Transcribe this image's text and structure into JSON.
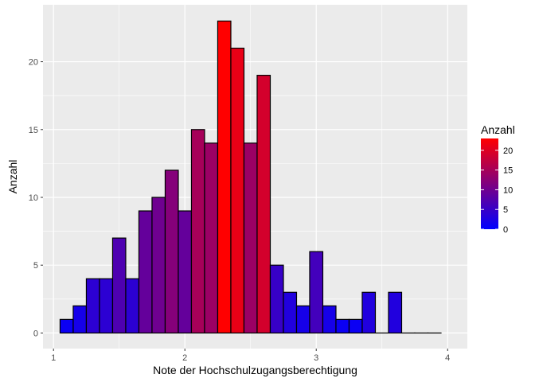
{
  "chart_data": {
    "type": "bar",
    "title": "",
    "xlabel": "Note der Hochschulzugangsberechtigung",
    "ylabel": "Anzahl",
    "xlim": [
      0.92,
      4.15
    ],
    "ylim": [
      -1.15,
      24.2
    ],
    "x_ticks": [
      1,
      2,
      3,
      4
    ],
    "x_tick_labels": [
      "1",
      "2",
      "3",
      "4"
    ],
    "y_ticks": [
      0,
      5,
      10,
      15,
      20
    ],
    "y_tick_labels": [
      "0",
      "5",
      "10",
      "15",
      "20"
    ],
    "bin_width": 0.1,
    "bins": [
      {
        "x": 1.1,
        "count": 1
      },
      {
        "x": 1.2,
        "count": 2
      },
      {
        "x": 1.3,
        "count": 4
      },
      {
        "x": 1.4,
        "count": 4
      },
      {
        "x": 1.5,
        "count": 7
      },
      {
        "x": 1.6,
        "count": 4
      },
      {
        "x": 1.7,
        "count": 9
      },
      {
        "x": 1.8,
        "count": 10
      },
      {
        "x": 1.9,
        "count": 12
      },
      {
        "x": 2.0,
        "count": 9
      },
      {
        "x": 2.1,
        "count": 15
      },
      {
        "x": 2.2,
        "count": 14
      },
      {
        "x": 2.3,
        "count": 23
      },
      {
        "x": 2.4,
        "count": 21
      },
      {
        "x": 2.5,
        "count": 14
      },
      {
        "x": 2.6,
        "count": 19
      },
      {
        "x": 2.7,
        "count": 5
      },
      {
        "x": 2.8,
        "count": 3
      },
      {
        "x": 2.9,
        "count": 2
      },
      {
        "x": 3.0,
        "count": 6
      },
      {
        "x": 3.1,
        "count": 2
      },
      {
        "x": 3.2,
        "count": 1
      },
      {
        "x": 3.3,
        "count": 1
      },
      {
        "x": 3.4,
        "count": 3
      },
      {
        "x": 3.5,
        "count": 0
      },
      {
        "x": 3.6,
        "count": 3
      },
      {
        "x": 3.7,
        "count": 0
      },
      {
        "x": 3.8,
        "count": 0
      },
      {
        "x": 3.9,
        "count": 0
      }
    ],
    "grid": true,
    "panel_background": "#EBEBEB",
    "grid_color": "#FFFFFF",
    "bar_outline": "#000000",
    "fill_low": "#0000FF",
    "fill_high": "#FF0000",
    "fill_range": [
      0,
      23
    ],
    "legend": {
      "title": "Anzahl",
      "placement": "right",
      "breaks": [
        0,
        5,
        10,
        15,
        20
      ],
      "labels": [
        "0",
        "5",
        "10",
        "15",
        "20"
      ]
    }
  }
}
